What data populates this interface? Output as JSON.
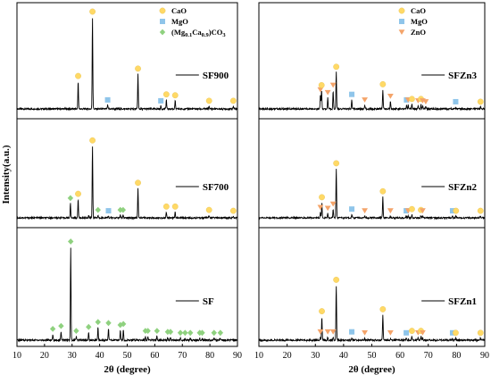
{
  "colors": {
    "CaO": "#ffd966",
    "MgO": "#8fc5ea",
    "ZnO": "#f4a46a",
    "MgCaCO3": "#8fd17f"
  },
  "chart_data": [
    {
      "type": "line",
      "panel": "left",
      "xlabel": "2θ (degree)",
      "ylabel": "Intensity(a.u.)",
      "xlim": [
        10,
        90
      ],
      "xticks": [
        10,
        20,
        30,
        40,
        50,
        60,
        70,
        80,
        90
      ],
      "legend": {
        "placement": "top-left",
        "entries": [
          {
            "key": "CaO",
            "label": "CaO",
            "marker": "circle"
          },
          {
            "key": "MgO",
            "label": "MgO",
            "marker": "square"
          },
          {
            "key": "MgCaCO3",
            "label_pre": "(Mg",
            "sub1": "0.1",
            "label_mid": "Ca",
            "sub2": "0.9",
            "label_post": ")CO",
            "sub3": "3",
            "marker": "diamond"
          }
        ]
      },
      "series": [
        {
          "name": "SF900",
          "peaks": [
            {
              "x": 32.2,
              "h": 0.3,
              "phase": "CaO"
            },
            {
              "x": 37.4,
              "h": 1.0,
              "phase": "CaO"
            },
            {
              "x": 42.9,
              "h": 0.04,
              "phase": "MgO"
            },
            {
              "x": 53.9,
              "h": 0.38,
              "phase": "CaO"
            },
            {
              "x": 62.2,
              "h": 0.03,
              "phase": "MgO"
            },
            {
              "x": 64.2,
              "h": 0.1,
              "phase": "CaO"
            },
            {
              "x": 67.4,
              "h": 0.09,
              "phase": "CaO"
            },
            {
              "x": 79.7,
              "h": 0.03,
              "phase": "CaO"
            },
            {
              "x": 88.5,
              "h": 0.03,
              "phase": "CaO"
            }
          ]
        },
        {
          "name": "SF700",
          "peaks": [
            {
              "x": 29.4,
              "h": 0.17,
              "phase": "MgCaCO3"
            },
            {
              "x": 32.2,
              "h": 0.22,
              "phase": "CaO"
            },
            {
              "x": 37.4,
              "h": 0.85,
              "phase": "CaO"
            },
            {
              "x": 39.4,
              "h": 0.03,
              "phase": "MgCaCO3"
            },
            {
              "x": 43.2,
              "h": 0.02,
              "phase": "MgO"
            },
            {
              "x": 47.5,
              "h": 0.03,
              "phase": "MgCaCO3"
            },
            {
              "x": 48.5,
              "h": 0.03,
              "phase": "MgCaCO3"
            },
            {
              "x": 53.9,
              "h": 0.35,
              "phase": "CaO"
            },
            {
              "x": 64.2,
              "h": 0.07,
              "phase": "CaO"
            },
            {
              "x": 67.4,
              "h": 0.07,
              "phase": "CaO"
            },
            {
              "x": 79.7,
              "h": 0.03,
              "phase": "CaO"
            },
            {
              "x": 88.5,
              "h": 0.02,
              "phase": "CaO"
            }
          ],
          "unmarked_peaks": [
            {
              "x": 36.0,
              "h": 0.03
            }
          ]
        },
        {
          "name": "SF",
          "peaks": [
            {
              "x": 23.0,
              "h": 0.06,
              "phase": "MgCaCO3"
            },
            {
              "x": 26.0,
              "h": 0.09,
              "phase": "MgCaCO3"
            },
            {
              "x": 29.5,
              "h": 0.95,
              "phase": "MgCaCO3"
            },
            {
              "x": 31.5,
              "h": 0.04,
              "phase": "MgCaCO3"
            },
            {
              "x": 36.0,
              "h": 0.08,
              "phase": "MgCaCO3"
            },
            {
              "x": 39.4,
              "h": 0.13,
              "phase": "MgCaCO3"
            },
            {
              "x": 43.2,
              "h": 0.12,
              "phase": "MgCaCO3"
            },
            {
              "x": 47.5,
              "h": 0.1,
              "phase": "MgCaCO3"
            },
            {
              "x": 48.6,
              "h": 0.11,
              "phase": "MgCaCO3"
            },
            {
              "x": 56.6,
              "h": 0.04,
              "phase": "MgCaCO3"
            },
            {
              "x": 57.5,
              "h": 0.04,
              "phase": "MgCaCO3"
            },
            {
              "x": 60.8,
              "h": 0.04,
              "phase": "MgCaCO3"
            },
            {
              "x": 64.7,
              "h": 0.03,
              "phase": "MgCaCO3"
            },
            {
              "x": 65.7,
              "h": 0.03,
              "phase": "MgCaCO3"
            },
            {
              "x": 69.3,
              "h": 0.02,
              "phase": "MgCaCO3"
            },
            {
              "x": 71.0,
              "h": 0.02,
              "phase": "MgCaCO3"
            },
            {
              "x": 72.9,
              "h": 0.02,
              "phase": "MgCaCO3"
            },
            {
              "x": 76.3,
              "h": 0.02,
              "phase": "MgCaCO3"
            },
            {
              "x": 77.2,
              "h": 0.02,
              "phase": "MgCaCO3"
            },
            {
              "x": 81.5,
              "h": 0.02,
              "phase": "MgCaCO3"
            },
            {
              "x": 83.8,
              "h": 0.02,
              "phase": "MgCaCO3"
            }
          ]
        }
      ]
    },
    {
      "type": "line",
      "panel": "right",
      "xlabel": "2θ (degree)",
      "xlim": [
        10,
        90
      ],
      "xticks": [
        10,
        20,
        30,
        40,
        50,
        60,
        70,
        80,
        90
      ],
      "legend": {
        "placement": "top-left",
        "entries": [
          {
            "key": "CaO",
            "label": "CaO",
            "marker": "circle"
          },
          {
            "key": "MgO",
            "label": "MgO",
            "marker": "square"
          },
          {
            "key": "ZnO",
            "label": "ZnO",
            "marker": "triangle-down"
          }
        ]
      },
      "series": [
        {
          "name": "SFZn3",
          "peaks": [
            {
              "x": 31.8,
              "h": 0.15,
              "phase": "ZnO"
            },
            {
              "x": 32.2,
              "h": 0.2,
              "phase": "CaO"
            },
            {
              "x": 34.4,
              "h": 0.12,
              "phase": "ZnO"
            },
            {
              "x": 36.3,
              "h": 0.2,
              "phase": "ZnO"
            },
            {
              "x": 37.4,
              "h": 0.4,
              "phase": "CaO"
            },
            {
              "x": 42.9,
              "h": 0.1,
              "phase": "MgO"
            },
            {
              "x": 47.5,
              "h": 0.04,
              "phase": "ZnO"
            },
            {
              "x": 53.9,
              "h": 0.21,
              "phase": "CaO"
            },
            {
              "x": 56.6,
              "h": 0.08,
              "phase": "ZnO"
            },
            {
              "x": 62.3,
              "h": 0.04,
              "phase": "MgO"
            },
            {
              "x": 62.9,
              "h": 0.04,
              "phase": "ZnO"
            },
            {
              "x": 64.2,
              "h": 0.05,
              "phase": "CaO"
            },
            {
              "x": 66.4,
              "h": 0.03,
              "phase": "ZnO"
            },
            {
              "x": 67.4,
              "h": 0.05,
              "phase": "CaO"
            },
            {
              "x": 68.0,
              "h": 0.03,
              "phase": "ZnO"
            },
            {
              "x": 69.1,
              "h": 0.02,
              "phase": "ZnO"
            },
            {
              "x": 79.7,
              "h": 0.02,
              "phase": "MgO"
            },
            {
              "x": 88.5,
              "h": 0.02,
              "phase": "CaO"
            }
          ]
        },
        {
          "name": "SFZn2",
          "peaks": [
            {
              "x": 31.8,
              "h": 0.06,
              "phase": "ZnO"
            },
            {
              "x": 32.3,
              "h": 0.18,
              "phase": "CaO"
            },
            {
              "x": 34.4,
              "h": 0.05,
              "phase": "ZnO"
            },
            {
              "x": 36.3,
              "h": 0.1,
              "phase": "ZnO"
            },
            {
              "x": 37.4,
              "h": 0.58,
              "phase": "CaO"
            },
            {
              "x": 42.9,
              "h": 0.04,
              "phase": "MgO"
            },
            {
              "x": 47.5,
              "h": 0.02,
              "phase": "ZnO"
            },
            {
              "x": 53.9,
              "h": 0.25,
              "phase": "CaO"
            },
            {
              "x": 56.6,
              "h": 0.02,
              "phase": "ZnO"
            },
            {
              "x": 62.2,
              "h": 0.02,
              "phase": "MgO"
            },
            {
              "x": 62.9,
              "h": 0.02,
              "phase": "ZnO"
            },
            {
              "x": 64.2,
              "h": 0.04,
              "phase": "CaO"
            },
            {
              "x": 67.4,
              "h": 0.03,
              "phase": "CaO"
            },
            {
              "x": 68.0,
              "h": 0.02,
              "phase": "ZnO"
            },
            {
              "x": 78.6,
              "h": 0.02,
              "phase": "MgO"
            },
            {
              "x": 79.8,
              "h": 0.02,
              "phase": "CaO"
            },
            {
              "x": 88.5,
              "h": 0.02,
              "phase": "CaO"
            }
          ]
        },
        {
          "name": "SFZn1",
          "peaks": [
            {
              "x": 31.8,
              "h": 0.03,
              "phase": "ZnO"
            },
            {
              "x": 32.3,
              "h": 0.24,
              "phase": "CaO"
            },
            {
              "x": 34.4,
              "h": 0.03,
              "phase": "ZnO"
            },
            {
              "x": 36.3,
              "h": 0.03,
              "phase": "ZnO"
            },
            {
              "x": 37.4,
              "h": 0.56,
              "phase": "CaO"
            },
            {
              "x": 42.9,
              "h": 0.03,
              "phase": "MgO"
            },
            {
              "x": 47.5,
              "h": 0.02,
              "phase": "ZnO"
            },
            {
              "x": 53.9,
              "h": 0.26,
              "phase": "CaO"
            },
            {
              "x": 56.6,
              "h": 0.02,
              "phase": "ZnO"
            },
            {
              "x": 62.2,
              "h": 0.02,
              "phase": "MgO"
            },
            {
              "x": 64.2,
              "h": 0.04,
              "phase": "CaO"
            },
            {
              "x": 66.4,
              "h": 0.02,
              "phase": "ZnO"
            },
            {
              "x": 67.4,
              "h": 0.04,
              "phase": "CaO"
            },
            {
              "x": 68.0,
              "h": 0.02,
              "phase": "ZnO"
            },
            {
              "x": 78.6,
              "h": 0.02,
              "phase": "MgO"
            },
            {
              "x": 79.7,
              "h": 0.02,
              "phase": "CaO"
            },
            {
              "x": 88.5,
              "h": 0.02,
              "phase": "CaO"
            }
          ]
        }
      ]
    }
  ]
}
